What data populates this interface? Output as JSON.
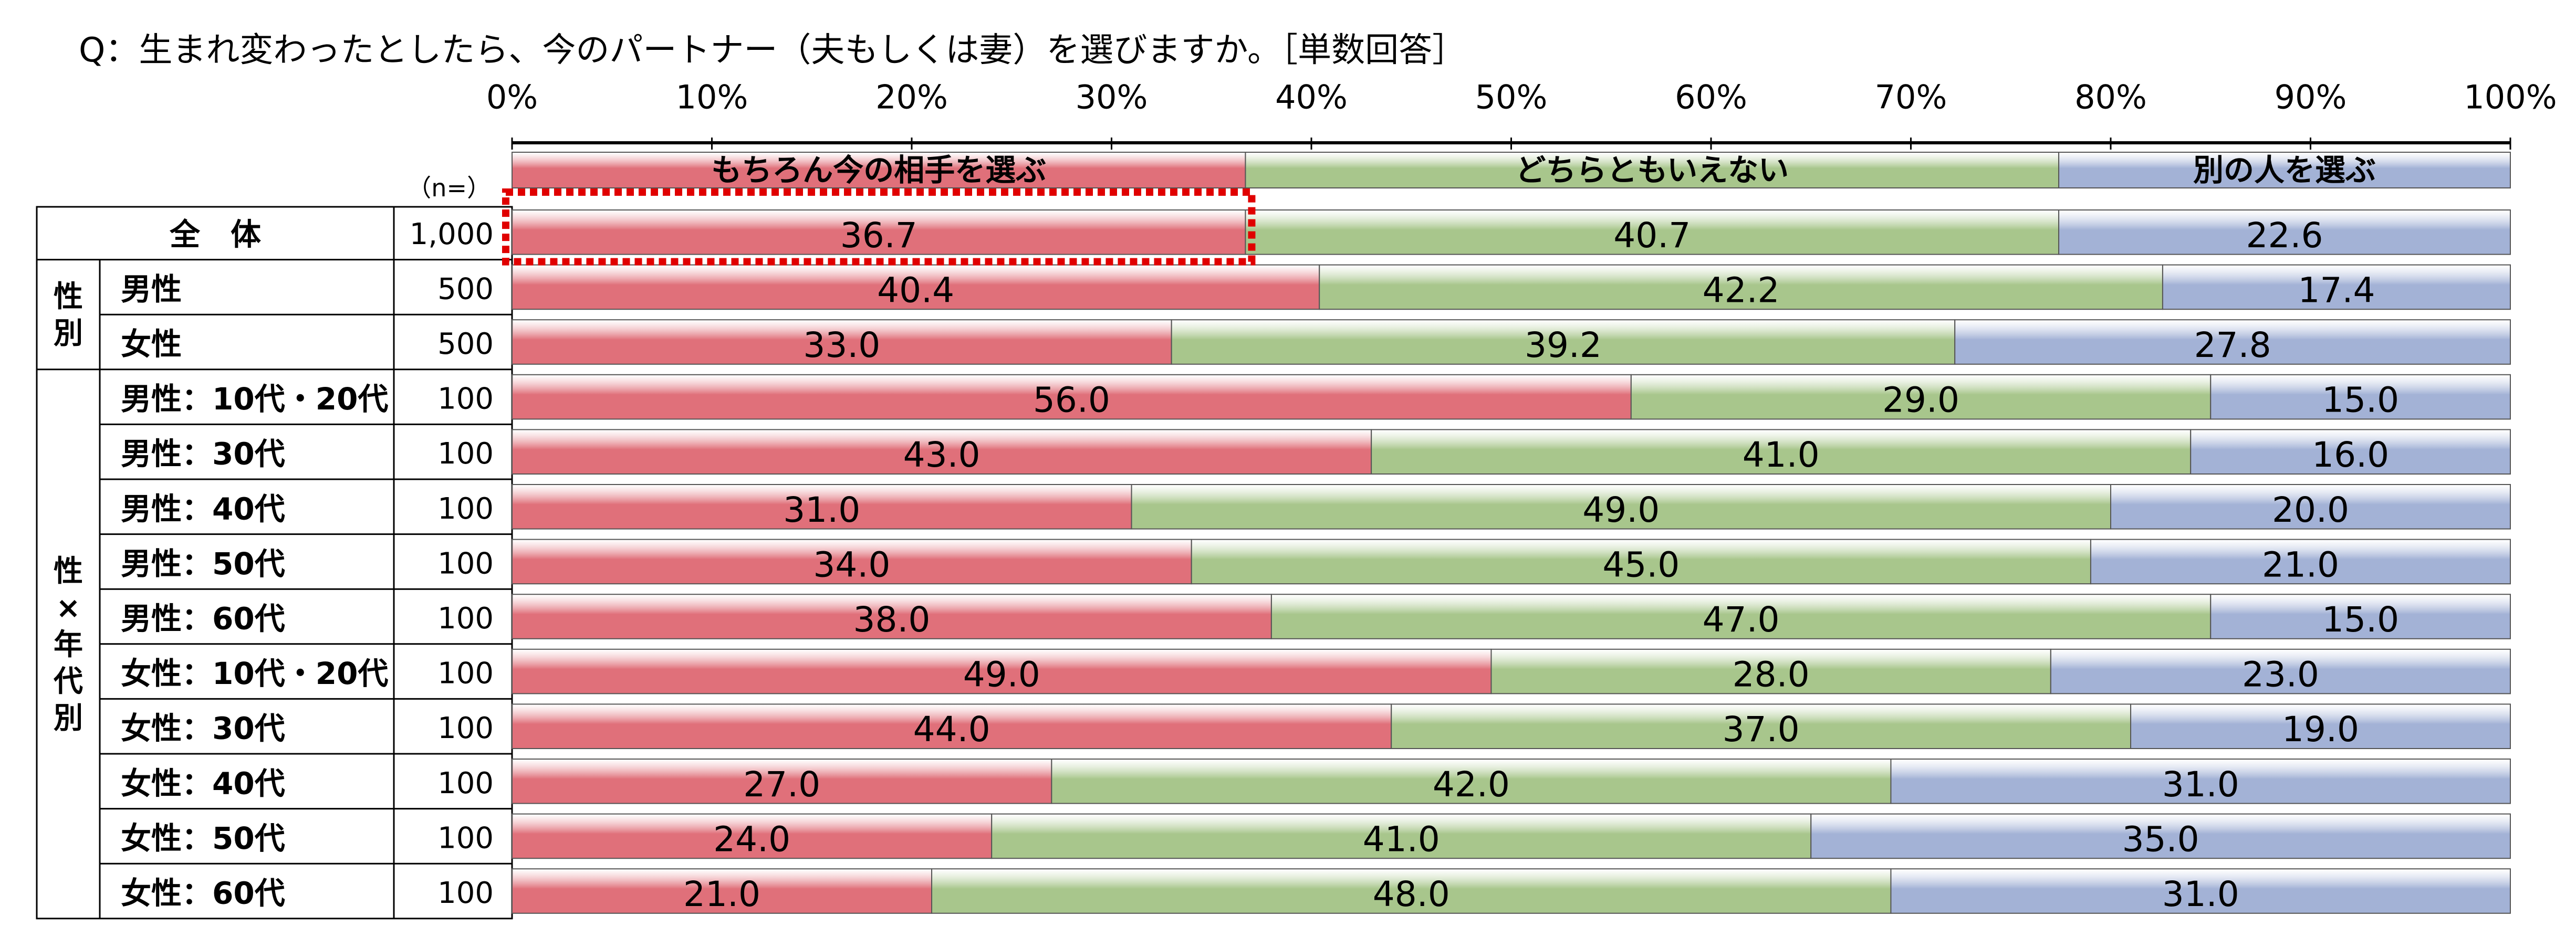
{
  "question": "Q：生まれ変わったとしたら、今のパートナー（夫もしくは妻）を選びますか。［単数回答］",
  "n_label": "（n=）",
  "groups": [
    {
      "label": "性別",
      "rows": [
        1,
        2
      ]
    },
    {
      "label": "性×年代別",
      "rows": [
        3,
        12
      ]
    }
  ],
  "colors": {
    "option1": "#e0707a",
    "option2": "#a8c68c",
    "option3": "#a3b2d6",
    "highlight": "#e00000"
  },
  "chart_data": {
    "type": "bar",
    "stacked": true,
    "orientation": "horizontal",
    "percent": true,
    "xlim": [
      0,
      100
    ],
    "ticks": [
      "0%",
      "10%",
      "20%",
      "30%",
      "40%",
      "50%",
      "60%",
      "70%",
      "80%",
      "90%",
      "100%"
    ],
    "categories": [
      "全　体",
      "男性",
      "女性",
      "男性：10代・20代",
      "男性：30代",
      "男性：40代",
      "男性：50代",
      "男性：60代",
      "女性：10代・20代",
      "女性：30代",
      "女性：40代",
      "女性：50代",
      "女性：60代"
    ],
    "n": [
      "1,000",
      "500",
      "500",
      "100",
      "100",
      "100",
      "100",
      "100",
      "100",
      "100",
      "100",
      "100",
      "100"
    ],
    "series": [
      {
        "name": "もちろん今の相手を選ぶ",
        "values": [
          36.7,
          40.4,
          33.0,
          56.0,
          43.0,
          31.0,
          34.0,
          38.0,
          49.0,
          44.0,
          27.0,
          24.0,
          21.0
        ]
      },
      {
        "name": "どちらともいえない",
        "values": [
          40.7,
          42.2,
          39.2,
          29.0,
          41.0,
          49.0,
          45.0,
          47.0,
          28.0,
          37.0,
          42.0,
          41.0,
          48.0
        ]
      },
      {
        "name": "別の人を選ぶ",
        "values": [
          22.6,
          17.4,
          27.8,
          15.0,
          16.0,
          20.0,
          21.0,
          15.0,
          23.0,
          19.0,
          31.0,
          35.0,
          31.0
        ]
      }
    ],
    "value_labels": [
      [
        "36.7",
        "40.7",
        "22.6"
      ],
      [
        "40.4",
        "42.2",
        "17.4"
      ],
      [
        "33.0",
        "39.2",
        "27.8"
      ],
      [
        "56.0",
        "29.0",
        "15.0"
      ],
      [
        "43.0",
        "41.0",
        "16.0"
      ],
      [
        "31.0",
        "49.0",
        "20.0"
      ],
      [
        "34.0",
        "45.0",
        "21.0"
      ],
      [
        "38.0",
        "47.0",
        "15.0"
      ],
      [
        "49.0",
        "28.0",
        "23.0"
      ],
      [
        "44.0",
        "37.0",
        "19.0"
      ],
      [
        "27.0",
        "42.0",
        "31.0"
      ],
      [
        "24.0",
        "41.0",
        "35.0"
      ],
      [
        "21.0",
        "48.0",
        "31.0"
      ]
    ],
    "highlighted": {
      "row": 0,
      "series": 0
    }
  }
}
